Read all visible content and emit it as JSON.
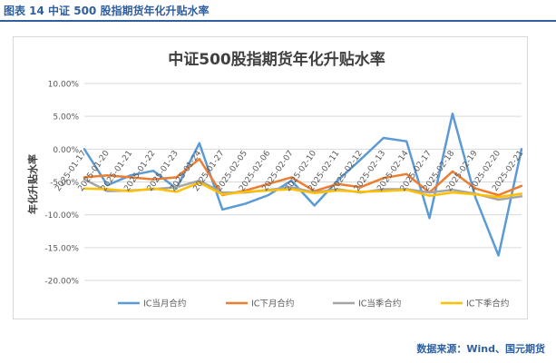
{
  "figure_caption": "图表 14  中证 500 股指期货年化升贴水率",
  "source_note": "数据来源：Wind、国元期货",
  "chart_data": {
    "type": "line",
    "title": "中证500股指期货年化升贴水率",
    "ylabel": "年化升贴水率",
    "xlabel": "",
    "ylim": [
      -20,
      10
    ],
    "y_ticks": [
      "10.00%",
      "5.00%",
      "0.00%",
      "-5.00%",
      "-10.00%",
      "-15.00%",
      "-20.00%"
    ],
    "categories": [
      "2025-01-17",
      "2025-01-20",
      "2025-01-21",
      "2025-01-22",
      "2025-01-23",
      "2025-01-24",
      "2025-01-27",
      "2025-02-05",
      "2025-02-06",
      "2025-02-07",
      "2025-02-10",
      "2025-02-11",
      "2025-02-12",
      "2025-02-13",
      "2025-02-14",
      "2025-02-17",
      "2025-02-18",
      "2025-02-19",
      "2025-02-20",
      "2025-02-21"
    ],
    "series": [
      {
        "name": "IC当月合约",
        "color": "#5b9bd5",
        "values": [
          0.0,
          -5.5,
          -4.0,
          -3.3,
          -6.0,
          0.9,
          -9.2,
          -8.3,
          -7.0,
          -4.8,
          -8.6,
          -4.8,
          -1.6,
          1.7,
          1.2,
          -10.5,
          5.4,
          -7.4,
          -16.2,
          0.0
        ]
      },
      {
        "name": "IC下月合约",
        "color": "#ed7d31",
        "values": [
          -4.3,
          -4.0,
          -4.3,
          -4.6,
          -4.3,
          -1.5,
          -7.0,
          -6.3,
          -5.3,
          -4.3,
          -6.4,
          -5.3,
          -5.8,
          -4.4,
          -3.8,
          -6.6,
          -3.4,
          -6.0,
          -7.0,
          -5.6
        ]
      },
      {
        "name": "IC当季合约",
        "color": "#a5a5a5",
        "values": [
          -4.6,
          -6.4,
          -6.3,
          -6.1,
          -5.8,
          -4.8,
          -6.6,
          -6.6,
          -6.2,
          -5.8,
          -6.6,
          -6.1,
          -6.6,
          -6.1,
          -6.1,
          -6.6,
          -6.2,
          -6.8,
          -7.7,
          -7.2
        ]
      },
      {
        "name": "IC下季合约",
        "color": "#ffc000",
        "values": [
          -6.0,
          -6.1,
          -6.4,
          -6.0,
          -6.5,
          -5.1,
          -6.9,
          -6.5,
          -6.3,
          -6.1,
          -6.7,
          -6.3,
          -6.5,
          -6.4,
          -6.2,
          -7.1,
          -6.6,
          -6.9,
          -7.3,
          -6.8
        ]
      }
    ],
    "legend_position": "bottom",
    "grid": "horizontal"
  }
}
